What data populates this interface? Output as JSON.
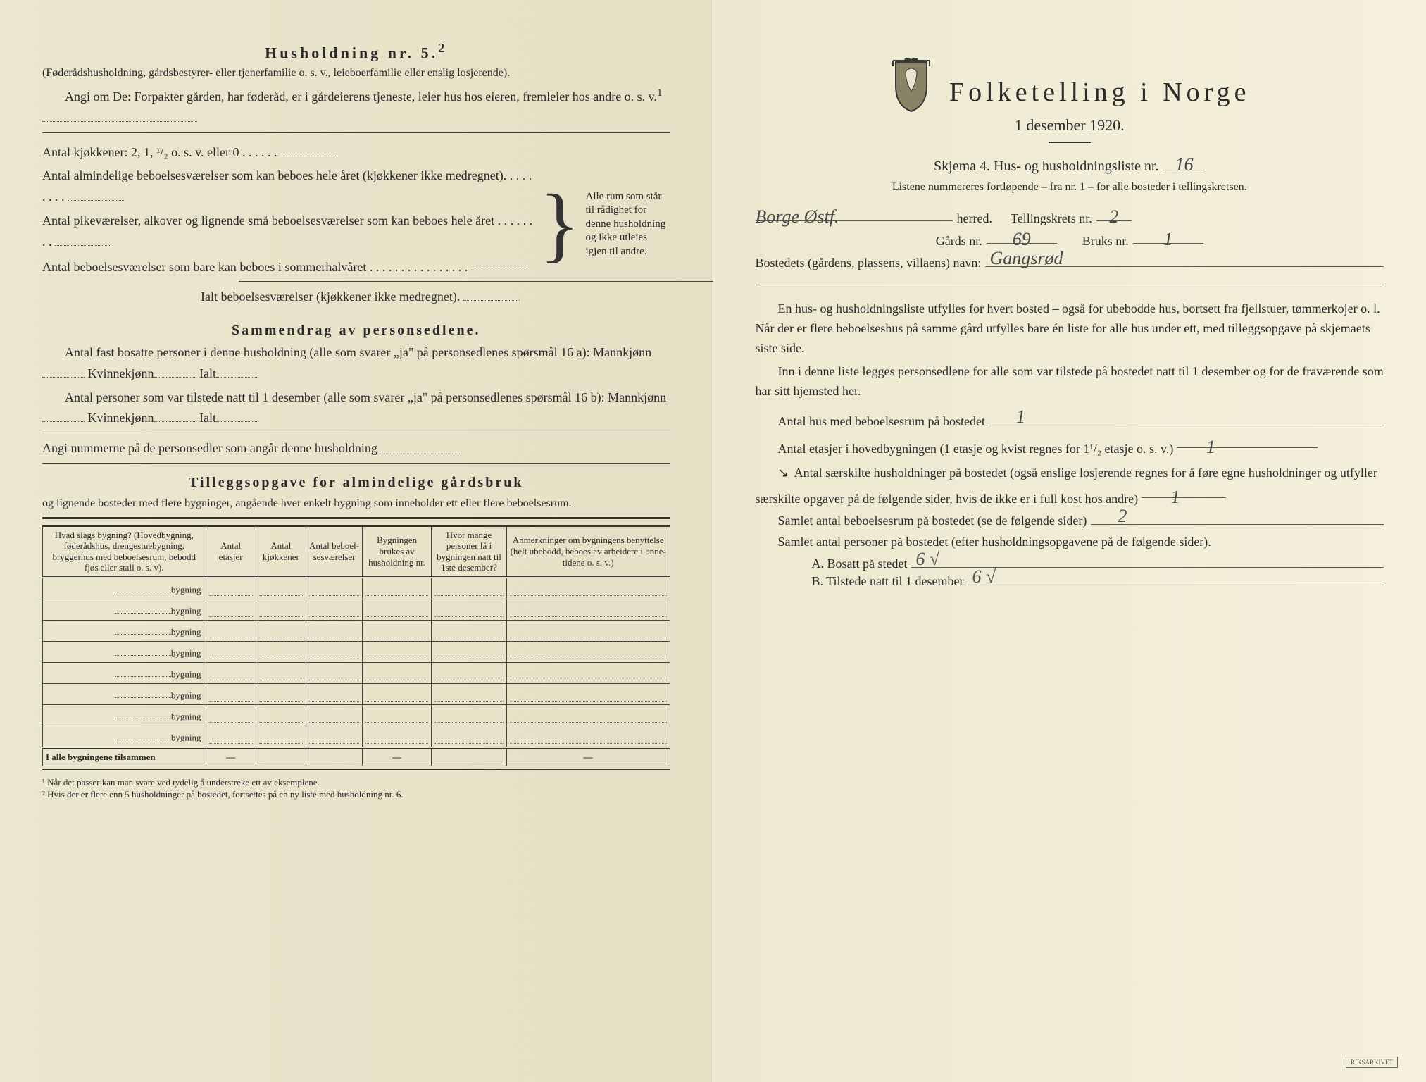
{
  "left": {
    "household_heading": "Husholdning nr. 5.",
    "household_sup": "2",
    "household_note": "(Føderådshusholdning, gårdsbestyrer- eller tjenerfamilie o. s. v., leieboerfamilie eller enslig losjerende).",
    "household_instruction": "Angi om De: Forpakter gården, har føderåd, er i gårdeierens tjeneste, leier hus hos eieren, fremleier hos andre o. s. v.",
    "household_sup2": "1",
    "kitchens_line": "Antal kjøkkener: 2, 1, ¹/₂ o. s. v. eller 0 . . . . . .",
    "rooms_line1": "Antal almindelige beboelsesværelser som kan beboes hele året (kjøkkener ikke medregnet). . . . . . . . .",
    "rooms_line2": "Antal pikeværelser, alkover og lignende små beboelses­værelser som kan beboes hele året . . . . . . . .",
    "rooms_line3": "Antal beboelsesværelser som bare kan beboes i som­merhalvåret . . . . . . . . . . . . . . . .",
    "rooms_total": "Ialt beboelsesværelser  (kjøkkener ikke medregnet).",
    "brace_text": "Alle rum som står til rådighet for denne hushold­ning og ikke ut­leies igjen til andre.",
    "summary_heading": "Sammendrag av personsedlene.",
    "summary_p1a": "Antal fast bosatte personer i denne husholdning (alle som svarer „ja\" på personsedlenes spørsmål 16 a): Mannkjønn",
    "summary_kv": "Kvinnekjønn",
    "summary_ialt": "Ialt",
    "summary_p2a": "Antal personer som var tilstede natt til 1 desember (alle som svarer „ja\" på personsedlenes spørsmål 16 b): Mannkjønn",
    "summary_p3": "Angi nummerne på de personsedler som angår denne husholdning",
    "tillegg_heading": "Tilleggsopgave for almindelige gårdsbruk",
    "tillegg_sub": "og lignende bosteder med flere bygninger, angående hver enkelt bygning som inneholder ett eller flere beboelsesrum.",
    "table": {
      "headers": [
        "Hvad slags bygning?\n(Hovedbygning, føderådshus, drengestuebygning, bryggerhus med beboelsesrum, bebodd fjøs eller stall o. s. v).",
        "Antal etasjer",
        "Antal kjøkke­ner",
        "Antal beboel­sesvæ­relser",
        "Bygningen brukes av hushold­ning nr.",
        "Hvor mange personer lå i bygningen natt til 1ste desember?",
        "Anmerkninger om bygnin­gens benyttelse (helt ubebodd, beboes av arbeidere i onne­tidene o. s. v.)"
      ],
      "row_suffix": "bygning",
      "row_count": 8,
      "totals_label": "I alle bygningene tilsammen",
      "dash": "—"
    },
    "footnote1": "¹ Når det passer kan man svare ved tydelig å understreke ett av eksemplene.",
    "footnote2": "² Hvis der er flere enn 5 husholdninger på bostedet, fortsettes på en ny liste med husholdning nr. 6."
  },
  "right": {
    "title": "Folketelling i Norge",
    "date": "1 desember 1920.",
    "skjema_label": "Skjema 4.  Hus- og husholdningsliste nr.",
    "liste_nr": "16",
    "listene_text": "Listene nummereres fortløpende – fra nr. 1 – for alle bosteder i tellingskretsen.",
    "herred_name": "Borge Østf.",
    "herred_label": "herred.",
    "tellingskrets_label": "Tellingskrets nr.",
    "tellingskrets_nr": "2",
    "gards_label": "Gårds nr.",
    "gards_nr": "69",
    "bruks_label": "Bruks nr.",
    "bruks_nr": "1",
    "bosted_label": "Bostedets (gårdens, plassens, villaens) navn:",
    "bosted_name": "Gangsrød",
    "para1": "En hus- og husholdningsliste utfylles for hvert bosted – også for ubebodde hus, bortsett fra fjellstuer, tømmerkojer o. l.  Når der er flere beboelseshus på samme gård utfylles bare én liste for alle hus under ett, med tilleggsopgave på skjemaets siste side.",
    "para2": "Inn i denne liste legges personsedlene for alle som var tilstede på bostedet natt til 1 desember og for de fraværende som har sitt hjemsted her.",
    "q1_label": "Antal hus med beboelsesrum på bostedet",
    "q1_val": "1",
    "q2_label_a": "Antal etasjer i hovedbygningen (1 etasje og kvist regnes for 1¹/₂ etasje o. s. v.)",
    "q2_val": "1",
    "q3_label": "Antal særskilte husholdninger på bostedet (også enslige losjerende regnes for å føre egne husholdninger og utfyller særskilte opgaver på de følgende sider, hvis de ikke er i full kost hos andre)",
    "q3_val": "1",
    "q4_label": "Samlet antal beboelsesrum på bostedet (se de følgende sider)",
    "q4_val": "2",
    "q5_label": "Samlet antal personer på bostedet (efter husholdningsopgavene på de følgende sider).",
    "qA_label": "A.  Bosatt på stedet",
    "qA_val": "6 √",
    "qB_label": "B.  Tilstede natt til 1 desember",
    "qB_val": "6 √",
    "crest_colors": {
      "shield": "#7a7258",
      "outline": "#3a3a3a"
    }
  }
}
